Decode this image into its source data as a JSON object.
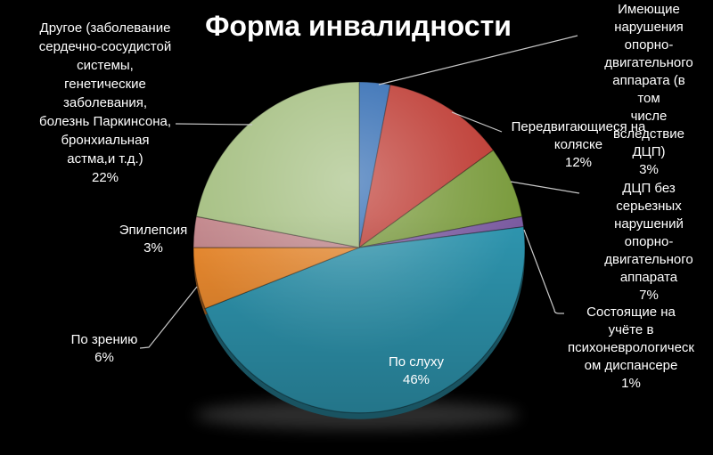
{
  "title": "Форма инвалидности",
  "colors": {
    "background": "#000000",
    "text": "#FFFFFF",
    "leader_line": "#C8C8C8"
  },
  "chart_data": {
    "type": "pie",
    "title": "Форма инвалидности",
    "units": "percent",
    "direction": "clockwise",
    "start_angle_deg": 0,
    "legend_position": "none",
    "labels_style": "outside callouts with leader lines; hearing label inside slice",
    "slices": [
      {
        "id": "musculoskeletal",
        "label": "Имеющие нарушения опорно-двигательного аппарата (в том числе вследствие ДЦП)",
        "value": 3,
        "color": "#2F6AB2"
      },
      {
        "id": "wheelchair",
        "label": "Передвигающиеся на коляске",
        "value": 12,
        "color": "#BE3B33"
      },
      {
        "id": "cp-without-impairment",
        "label": "ДЦП без серьезных нарушений опорно-двигательного аппарата",
        "value": 7,
        "color": "#7A9B3D"
      },
      {
        "id": "psychoneurological",
        "label": "Состоящие на учёте в психоневрологическом диспансере",
        "value": 1,
        "color": "#7C5CA2"
      },
      {
        "id": "hearing",
        "label": "По слуху",
        "value": 46,
        "color": "#2E96B0"
      },
      {
        "id": "vision",
        "label": "По зрению",
        "value": 6,
        "color": "#EC8B2F"
      },
      {
        "id": "epilepsy",
        "label": "Эпилепсия",
        "value": 3,
        "color": "#C4888D"
      },
      {
        "id": "other",
        "label": "Другое (заболевание сердечно-сосудистой системы, генетические заболевания, болезнь Паркинсона, бронхиальная астма,и т.д.)",
        "value": 22,
        "color": "#A6C083"
      }
    ]
  },
  "callouts": {
    "other": {
      "text": "Другое (заболевание\nсердечно-сосудистой\nсистемы,\nгенетические\nзаболевания,\nболезнь Паркинсона,\nбронхиальная\nастма,и т.д.)\n22%"
    },
    "epilepsy": {
      "text": "Эпилепсия\n3%"
    },
    "vision": {
      "text": "По зрению\n6%"
    },
    "hearing": {
      "text": "По слуху\n46%"
    },
    "musculoskeletal": {
      "text": "Имеющие\nнарушения опорно-\nдвигательного\nаппарата (в том\nчисле вследствие\nДЦП)\n3%"
    },
    "wheelchair": {
      "text": "Передвигающиеся на\nколяске\n12%"
    },
    "cp_without_impairment": {
      "text": "ДЦП без серьезных\nнарушений опорно-\nдвигательного\nаппарата\n7%"
    },
    "psychoneurological": {
      "text": "Состоящие на учёте в\nпсихоневрологическ\nом диспансере\n1%"
    }
  }
}
